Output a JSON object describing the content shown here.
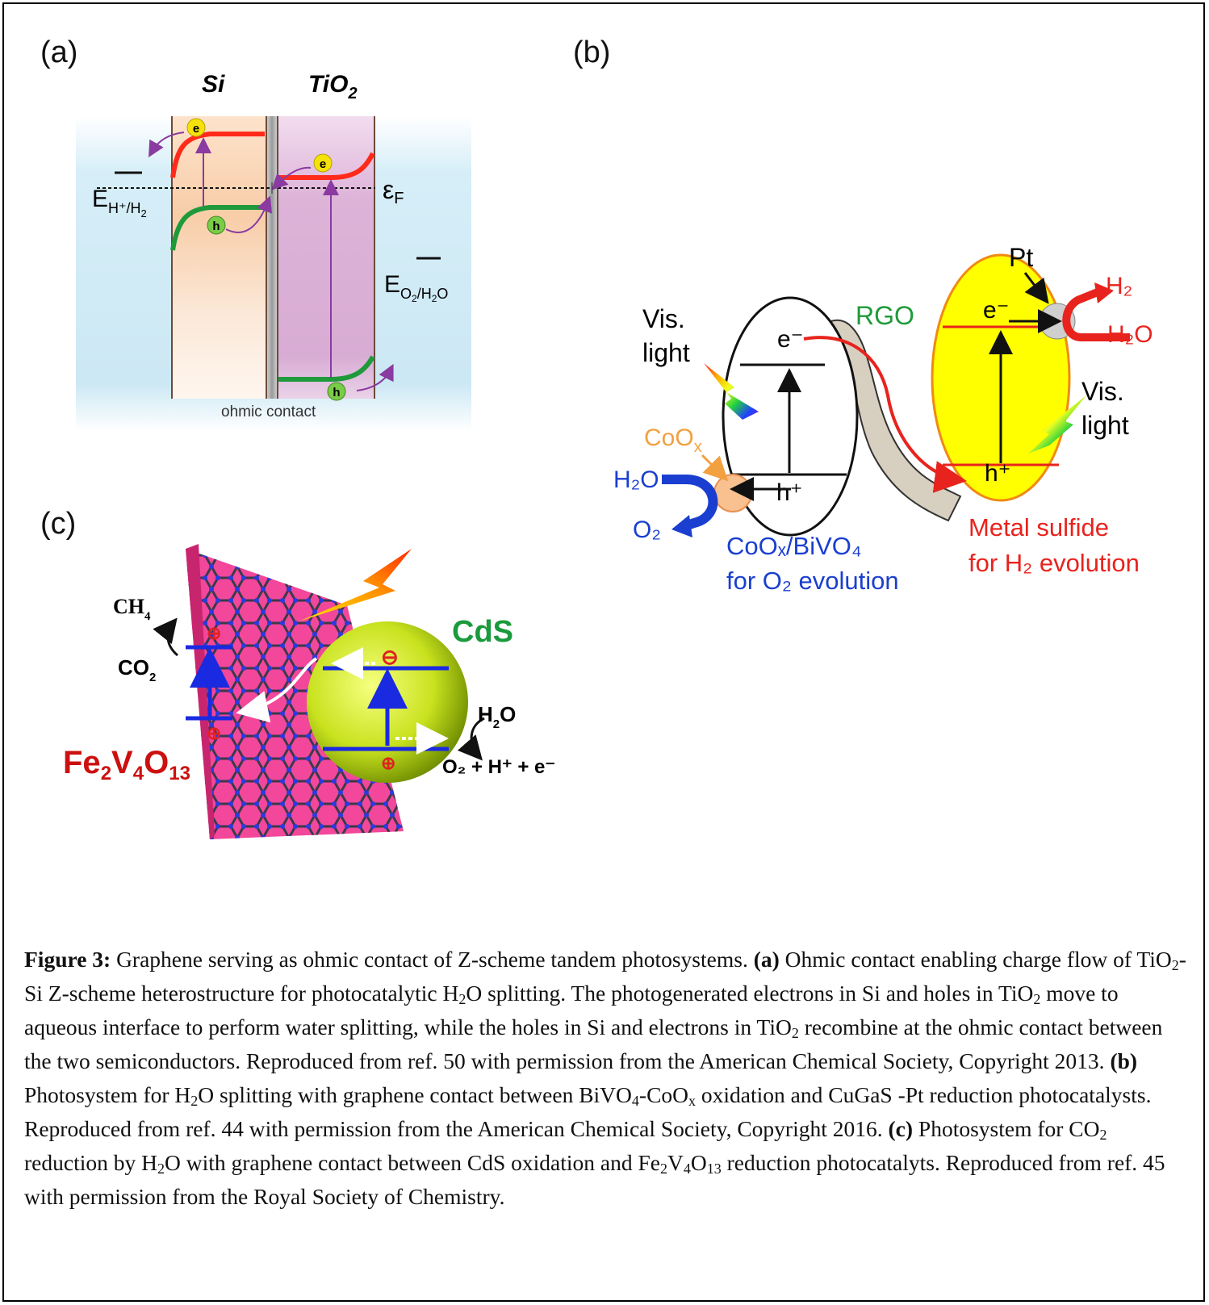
{
  "panels": {
    "a": {
      "label": "(a)",
      "si_label": "Si",
      "tio2_label": "TiO",
      "tio2_sub": "2",
      "electron": "e",
      "hole": "h",
      "e_h2_main": "E",
      "e_h2_sub": "H⁺/H",
      "e_h2_sub2": "2",
      "fermi_main": "ε",
      "fermi_sub": "F",
      "e_o2_main": "E",
      "e_o2_sub": "O",
      "e_o2_sub2": "2",
      "e_o2_sub3": "/H",
      "e_o2_sub4": "2",
      "e_o2_sub5": "O",
      "ohmic": "ohmic contact"
    },
    "b": {
      "label": "(b)",
      "vis_light_left_1": "Vis.",
      "vis_light_left_2": "light",
      "e_minus_left": "e⁻",
      "h_plus_left": "h⁺",
      "rgo": "RGO",
      "coox": "CoO",
      "coox_sub": "x",
      "h2o_left": "H₂O",
      "o2_left": "O₂",
      "coox_bivo4_1": "CoOₓ/BiVO₄",
      "coox_bivo4_2": "for O₂ evolution",
      "pt": "Pt",
      "e_minus_right": "e⁻",
      "h_plus_right": "h⁺",
      "h2_right": "H₂",
      "h2o_right": "H₂O",
      "vis_light_right_1": "Vis.",
      "vis_light_right_2": "light",
      "metal_sulfide_1": "Metal sulfide",
      "metal_sulfide_2": "for H₂ evolution"
    },
    "c": {
      "label": "(c)",
      "ch4": "CH",
      "ch4_sub": "4",
      "co2": "CO",
      "co2_sub": "2",
      "cds": "CdS",
      "h2o": "H",
      "h2o_sub": "2",
      "h2o_o": "O",
      "products": "O₂ + H⁺ + e⁻",
      "fe": "Fe",
      "fe_sub": "2",
      "v": "V",
      "v_sub": "4",
      "o": "O",
      "o_sub": "13"
    }
  },
  "caption": {
    "fig_label": "Figure 3:",
    "intro": " Graphene serving as ohmic contact of Z-scheme tandem photosystems. ",
    "a_label": "(a)",
    "a_text_1": " Ohmic contact enabling charge flow of TiO",
    "a_text_2": "-Si Z-scheme heterostructure for photocatalytic H",
    "a_text_3": "O splitting. The photogenerated electrons in Si and holes in TiO",
    "a_text_4": " move to aqueous interface to perform water splitting, while the holes in Si and electrons in TiO",
    "a_text_5": " recombine at the ohmic contact between the two semiconductors. Reproduced from ref. 50 with permission from the American Chemical Society, Copyright 2013. ",
    "b_label": "(b)",
    "b_text_1": " Photosystem for H",
    "b_text_2": "O splitting with graphene contact between BiVO",
    "b_text_3": "-CoO",
    "b_text_4": " oxidation and CuGaS -Pt reduction photocatalysts. Reproduced from ref. 44 with permission from the American Chemical Society, Copyright 2016. ",
    "c_label": "(c)",
    "c_text_1": " Photosystem for CO",
    "c_text_2": " reduction by H",
    "c_text_3": "O with graphene contact between CdS oxidation and Fe",
    "c_text_4": "V",
    "c_text_5": "O",
    "c_text_6": " reduction photocatalyts. Reproduced from ref. 45 with permission from the Royal Society of Chemistry.",
    "sub_2": "2",
    "sub_4": "4",
    "sub_x": "x",
    "sub_13": "13"
  },
  "colors": {
    "water_blue": "#cde9f5",
    "si_orange": "#f9d2b0",
    "tio2_pink": "#dcb0d8",
    "cb_red": "#ff2a1a",
    "vb_green": "#1f9a3a",
    "arrow_purple": "#8a3aa0",
    "bivo4_blue": "#1a3fd0",
    "coox_orange": "#f2a040",
    "metal_sulfide_red": "#e8231d",
    "metal_sulfide_yellow": "#ffff00",
    "rgo_tan": "#d7cfbf",
    "cds_green": "#1a9a3c",
    "fev_red": "#cc1010",
    "graphene_pink": "#f2479a",
    "band_blue": "#1a2ae0"
  }
}
